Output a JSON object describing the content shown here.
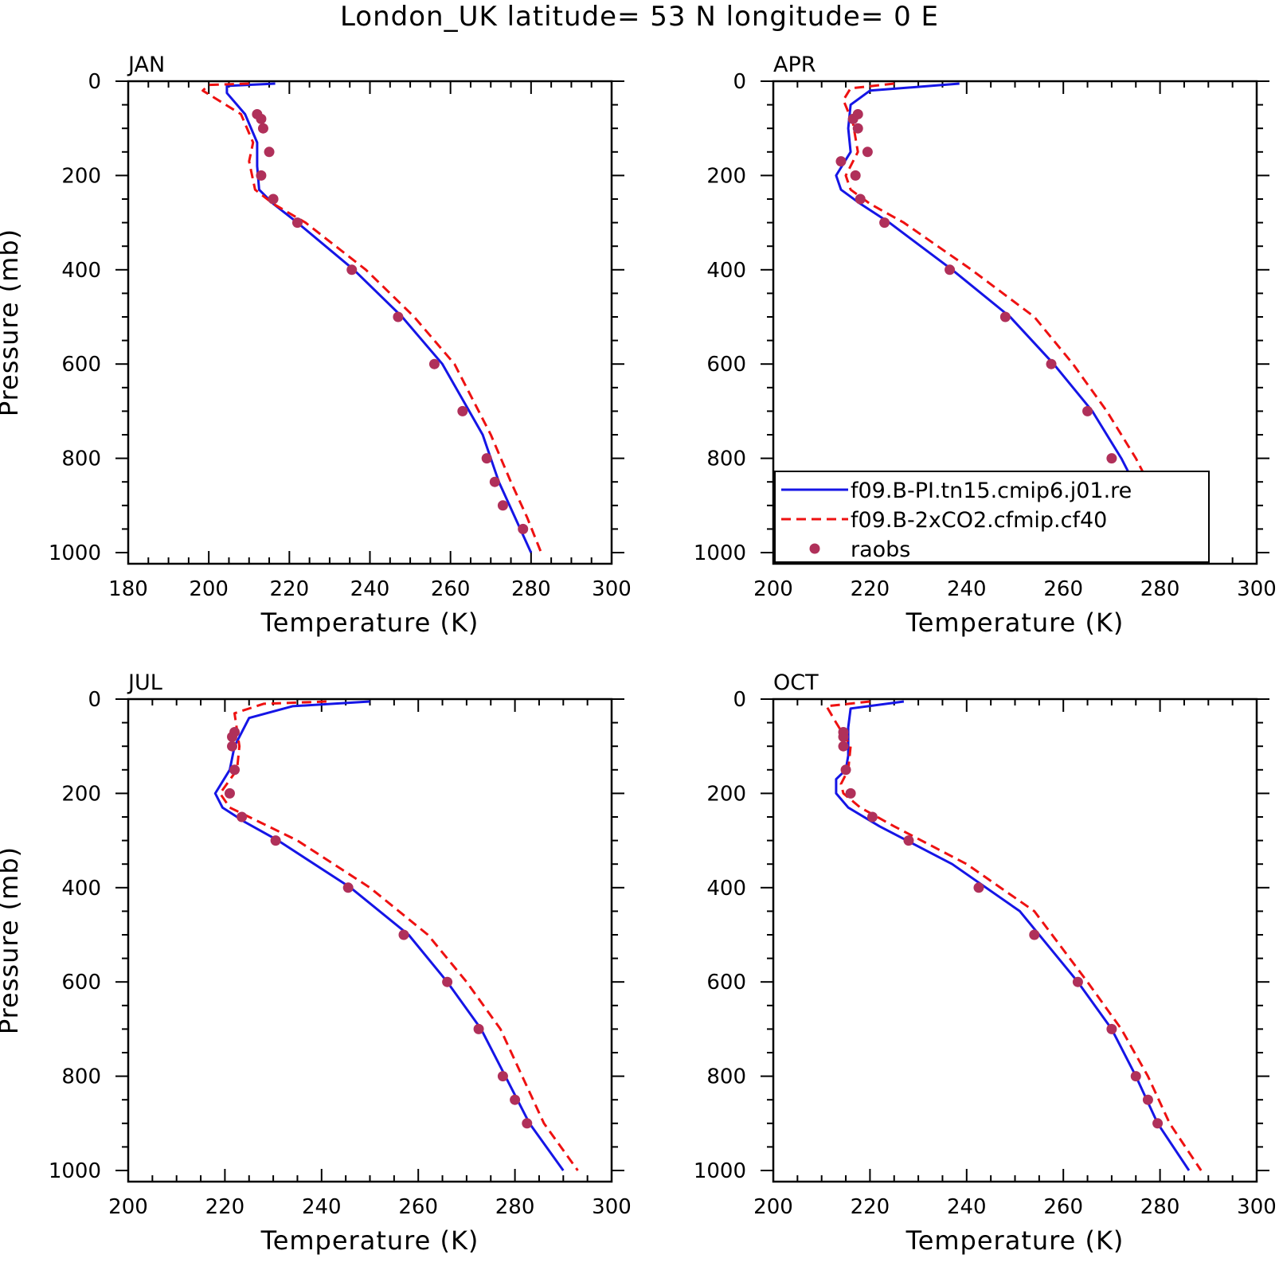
{
  "title": "London_UK  latitude= 53 N longitude= 0 E",
  "colors": {
    "model_pi": "#1515e6",
    "model_2xco2": "#ee1111",
    "raobs": "#b0305a"
  },
  "chart_data": [
    {
      "type": "line",
      "panel": "JAN",
      "xlabel": "Temperature (K)",
      "ylabel": "Pressure (mb)",
      "xlim": [
        180,
        300
      ],
      "ylim": [
        1000,
        0
      ],
      "xticks": [
        "180",
        "200",
        "220",
        "240",
        "260",
        "280",
        "300"
      ],
      "yticks": [
        "0",
        "200",
        "400",
        "600",
        "800",
        "1000"
      ],
      "series": [
        {
          "name": "f09.B-PI.tn15.cmip6.j01.re",
          "style": "solid",
          "x": [
            216.5,
            204.5,
            204.5,
            209,
            212,
            212,
            212.5,
            216,
            222,
            236,
            248,
            258,
            268,
            272,
            276,
            280
          ],
          "y": [
            5,
            10,
            25,
            70,
            130,
            180,
            230,
            260,
            300,
            400,
            500,
            600,
            750,
            850,
            925,
            1000
          ]
        },
        {
          "name": "f09.B-2xCO2.cfmip.cf40",
          "style": "dashed",
          "x": [
            210,
            200,
            198.5,
            208,
            211,
            210,
            211.5,
            216,
            224,
            239,
            251,
            261,
            270,
            275,
            279,
            282.5
          ],
          "y": [
            5,
            8,
            20,
            70,
            130,
            170,
            230,
            260,
            300,
            400,
            500,
            600,
            750,
            850,
            925,
            1000
          ]
        },
        {
          "name": "raobs",
          "style": "dots",
          "x": [
            212,
            213,
            213.5,
            215,
            213,
            216,
            222,
            235.5,
            247,
            256,
            263,
            269,
            271,
            273,
            278
          ],
          "y": [
            70,
            80,
            100,
            150,
            200,
            250,
            300,
            400,
            500,
            600,
            700,
            800,
            850,
            900,
            950
          ]
        }
      ],
      "legend": false
    },
    {
      "type": "line",
      "panel": "APR",
      "xlabel": "Temperature (K)",
      "ylabel": "",
      "xlim": [
        200,
        300
      ],
      "ylim": [
        1000,
        0
      ],
      "xticks": [
        "200",
        "220",
        "240",
        "260",
        "280",
        "300"
      ],
      "yticks": [
        "0",
        "200",
        "400",
        "600",
        "800",
        "1000"
      ],
      "series": [
        {
          "name": "f09.B-PI.tn15.cmip6.j01.re",
          "style": "solid",
          "x": [
            238.5,
            220,
            216,
            215.5,
            216,
            213,
            214,
            218,
            224,
            237,
            249,
            258,
            266,
            272,
            277,
            282.5
          ],
          "y": [
            5,
            20,
            50,
            100,
            150,
            200,
            230,
            260,
            300,
            400,
            500,
            600,
            700,
            800,
            900,
            1000
          ]
        },
        {
          "name": "f09.B-2xCO2.cfmip.cf40",
          "style": "dashed",
          "x": [
            225,
            216,
            214.5,
            216.5,
            217.5,
            215,
            216,
            220,
            227,
            241,
            254,
            262,
            269,
            275,
            280,
            285
          ],
          "y": [
            5,
            15,
            40,
            90,
            150,
            200,
            230,
            260,
            300,
            400,
            500,
            600,
            700,
            800,
            900,
            1000
          ]
        },
        {
          "name": "raobs",
          "style": "dots",
          "x": [
            217.5,
            216.5,
            217.5,
            219.5,
            214,
            217,
            218,
            223,
            236.5,
            248,
            257.5,
            265,
            270,
            272.5,
            275
          ],
          "y": [
            70,
            80,
            100,
            150,
            170,
            200,
            250,
            300,
            400,
            500,
            600,
            700,
            800,
            850,
            900
          ]
        }
      ],
      "legend": true,
      "legend_position": "bottom-left"
    },
    {
      "type": "line",
      "panel": "JUL",
      "xlabel": "Temperature (K)",
      "ylabel": "Pressure (mb)",
      "xlim": [
        200,
        300
      ],
      "ylim": [
        1000,
        0
      ],
      "xticks": [
        "200",
        "220",
        "240",
        "260",
        "280",
        "300"
      ],
      "yticks": [
        "0",
        "200",
        "400",
        "600",
        "800",
        "1000"
      ],
      "series": [
        {
          "name": "f09.B-PI.tn15.cmip6.j01.re",
          "style": "solid",
          "x": [
            250,
            234,
            225,
            222,
            221,
            218,
            219.5,
            224,
            231,
            246,
            258,
            266,
            273,
            278,
            283,
            290
          ],
          "y": [
            5,
            15,
            40,
            100,
            150,
            200,
            230,
            260,
            300,
            400,
            500,
            600,
            700,
            800,
            900,
            1000
          ]
        },
        {
          "name": "f09.B-2xCO2.cfmip.cf40",
          "style": "dashed",
          "x": [
            241,
            228,
            222,
            223,
            222.5,
            219,
            221,
            227,
            235,
            250,
            262,
            270,
            277,
            281.5,
            286,
            293
          ],
          "y": [
            5,
            10,
            30,
            100,
            150,
            200,
            230,
            260,
            300,
            400,
            500,
            600,
            700,
            800,
            900,
            1000
          ]
        },
        {
          "name": "raobs",
          "style": "dots",
          "x": [
            222,
            221.5,
            221.5,
            222,
            221,
            223.5,
            230.5,
            245.5,
            257,
            266,
            272.5,
            277.5,
            280,
            282.5
          ],
          "y": [
            70,
            80,
            100,
            150,
            200,
            250,
            300,
            400,
            500,
            600,
            700,
            800,
            850,
            900
          ]
        }
      ],
      "legend": false
    },
    {
      "type": "line",
      "panel": "OCT",
      "xlabel": "Temperature (K)",
      "ylabel": "",
      "xlim": [
        200,
        300
      ],
      "ylim": [
        1000,
        0
      ],
      "xticks": [
        "200",
        "220",
        "240",
        "260",
        "280",
        "300"
      ],
      "yticks": [
        "0",
        "200",
        "400",
        "600",
        "800",
        "1000"
      ],
      "series": [
        {
          "name": "f09.B-PI.tn15.cmip6.j01.re",
          "style": "solid",
          "x": [
            227,
            216,
            215.5,
            215.5,
            215,
            213,
            213,
            215.5,
            222,
            237,
            251,
            263,
            270,
            275,
            279.5,
            286
          ],
          "y": [
            5,
            20,
            60,
            120,
            150,
            170,
            200,
            230,
            270,
            350,
            450,
            600,
            700,
            800,
            900,
            1000
          ]
        },
        {
          "name": "f09.B-2xCO2.cfmip.cf40",
          "style": "dashed",
          "x": [
            220,
            211,
            213,
            216,
            215.5,
            214,
            214.5,
            218,
            225,
            240,
            254,
            265,
            272,
            277.5,
            282,
            288.5
          ],
          "y": [
            5,
            15,
            50,
            100,
            150,
            180,
            200,
            230,
            270,
            350,
            450,
            600,
            700,
            800,
            900,
            1000
          ]
        },
        {
          "name": "raobs",
          "style": "dots",
          "x": [
            214.5,
            214.5,
            214.5,
            215,
            216,
            220.5,
            228,
            242.5,
            254,
            263,
            270,
            275,
            277.5,
            279.5
          ],
          "y": [
            70,
            80,
            100,
            150,
            200,
            250,
            300,
            400,
            500,
            600,
            700,
            800,
            850,
            900
          ]
        }
      ],
      "legend": false
    }
  ]
}
